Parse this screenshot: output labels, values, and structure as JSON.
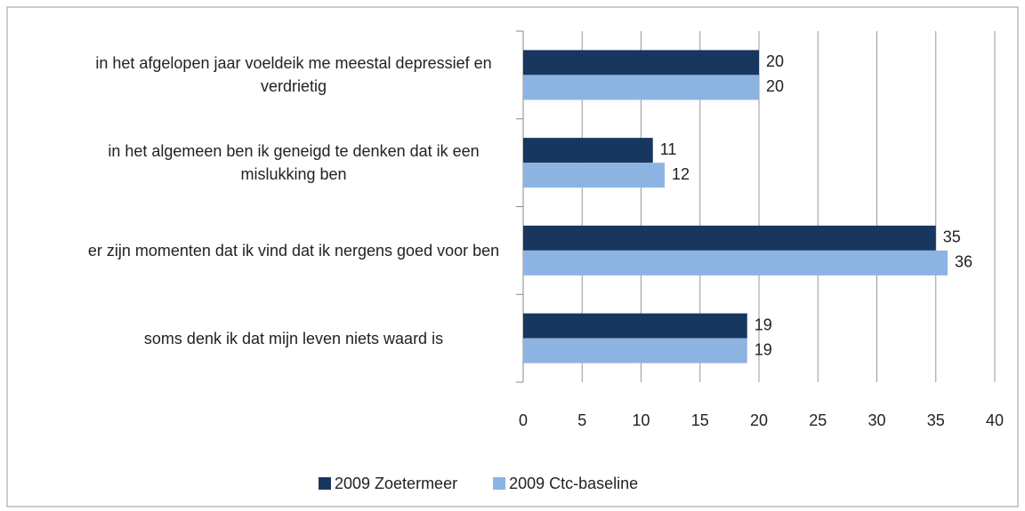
{
  "chart_data": {
    "type": "hbar",
    "categories": [
      "in het afgelopen jaar voeldeik me meestal depressief en verdrietig",
      "in het algemeen ben ik geneigd te denken dat ik een mislukking ben",
      "er zijn momenten dat ik vind dat ik nergens goed voor ben",
      "soms denk ik dat mijn leven niets waard is"
    ],
    "series": [
      {
        "name": "2009 Zoetermeer",
        "color": "#17375e",
        "values": [
          20,
          11,
          35,
          19
        ]
      },
      {
        "name": "2009 Ctc-baseline",
        "color": "#8db3e2",
        "values": [
          20,
          12,
          36,
          19
        ]
      }
    ],
    "xlim": [
      0,
      40
    ],
    "xticks": [
      0,
      5,
      10,
      15,
      20,
      25,
      30,
      35,
      40
    ],
    "grid": true,
    "legend": "bottom"
  }
}
